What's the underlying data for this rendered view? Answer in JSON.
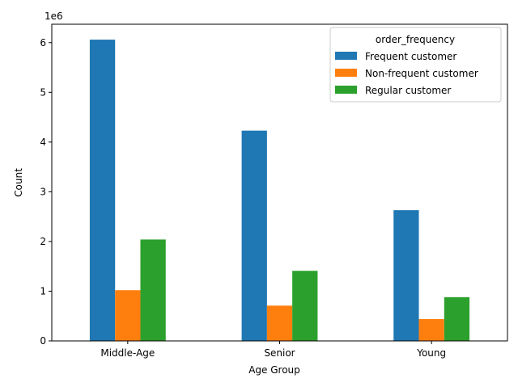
{
  "chart_data": {
    "type": "bar",
    "title": "",
    "xlabel": "Age Group",
    "ylabel": "Count",
    "y_scale_label": "1e6",
    "categories": [
      "Middle-Age",
      "Senior",
      "Young"
    ],
    "ylim": [
      0,
      6370000
    ],
    "yticks": [
      0,
      1000000,
      2000000,
      3000000,
      4000000,
      5000000,
      6000000
    ],
    "ytick_labels": [
      "0",
      "1",
      "2",
      "3",
      "4",
      "5",
      "6"
    ],
    "grid": false,
    "legend": {
      "title": "order_frequency",
      "placement": "upper right"
    },
    "series": [
      {
        "name": "Frequent customer",
        "color": "#1f77b4",
        "values": [
          6060000,
          4230000,
          2630000
        ]
      },
      {
        "name": "Non-frequent customer",
        "color": "#ff7f0e",
        "values": [
          1020000,
          710000,
          440000
        ]
      },
      {
        "name": "Regular customer",
        "color": "#2ca02c",
        "values": [
          2040000,
          1410000,
          880000
        ]
      }
    ]
  }
}
